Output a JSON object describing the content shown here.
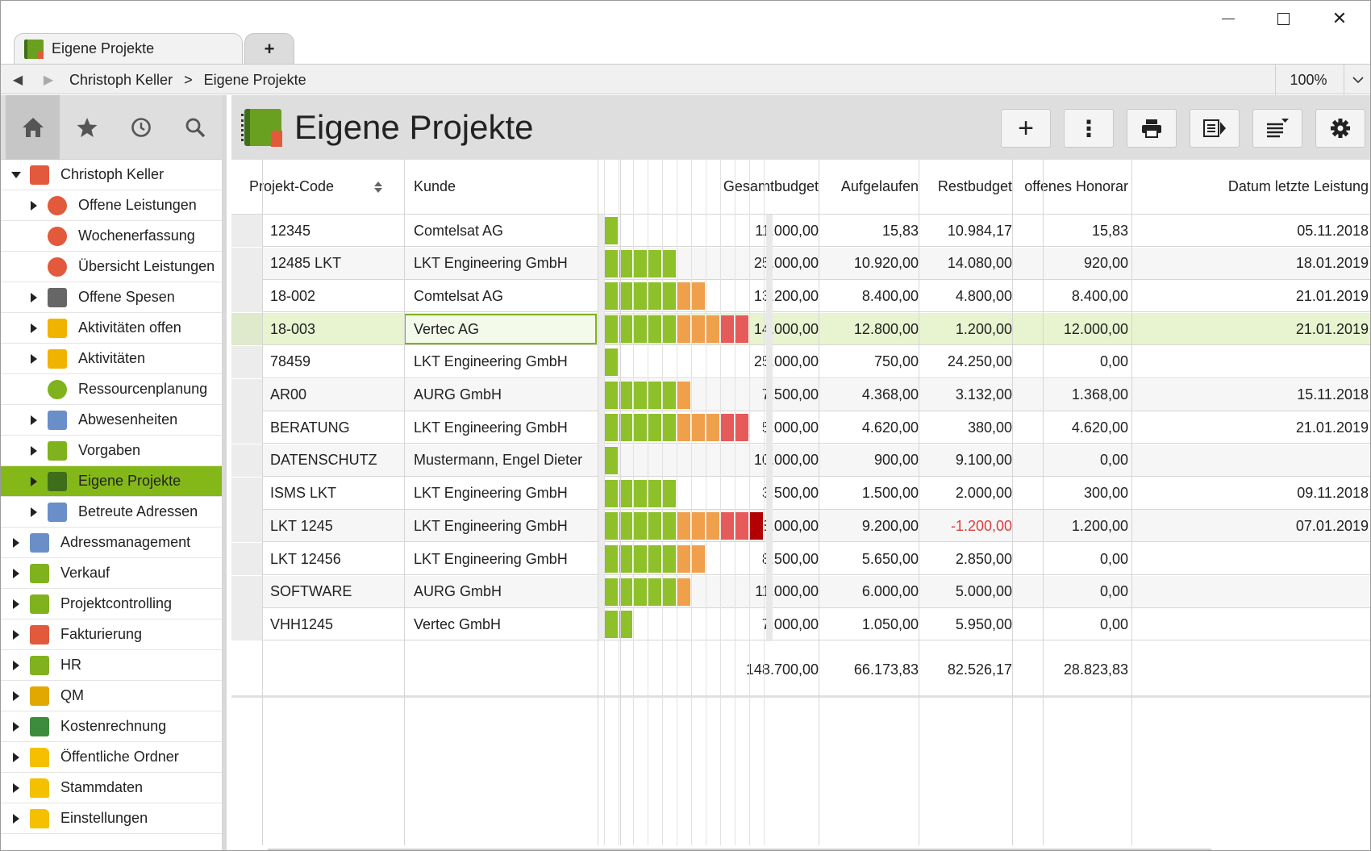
{
  "window": {
    "minimize": "—",
    "maximize": "☐",
    "close": "✕"
  },
  "tabs": [
    {
      "label": "Eigene Projekte"
    }
  ],
  "new_tab_label": "+",
  "address": {
    "back": "◀",
    "forward": "▶",
    "breadcrumb": [
      "Christoph Keller",
      ">",
      "Eigene Projekte"
    ],
    "zoom": "100%"
  },
  "sidebar": {
    "tools": [
      "home-icon",
      "star-icon",
      "history-icon",
      "search-icon"
    ],
    "items": [
      {
        "label": "Christoph Keller",
        "level": 0,
        "expanded": true,
        "icon": "user-icon",
        "color": "#e2593b"
      },
      {
        "label": "Offene Leistungen",
        "level": 1,
        "arrow": true,
        "icon": "chart-icon",
        "color": "#e2593b"
      },
      {
        "label": "Wochenerfassung",
        "level": 1,
        "arrow": false,
        "icon": "week-icon",
        "color": "#e2593b"
      },
      {
        "label": "Übersicht Leistungen",
        "level": 1,
        "arrow": false,
        "icon": "target-icon",
        "color": "#e2593b"
      },
      {
        "label": "Offene Spesen",
        "level": 1,
        "arrow": true,
        "icon": "receipt-icon",
        "color": "#666666"
      },
      {
        "label": "Aktivitäten offen",
        "level": 1,
        "arrow": true,
        "icon": "activity-icon",
        "color": "#f0b400"
      },
      {
        "label": "Aktivitäten",
        "level": 1,
        "arrow": true,
        "icon": "activity-icon",
        "color": "#f0b400"
      },
      {
        "label": "Ressourcenplanung",
        "level": 1,
        "arrow": false,
        "icon": "pie-icon",
        "color": "#7fb21d"
      },
      {
        "label": "Abwesenheiten",
        "level": 1,
        "arrow": true,
        "icon": "person-icon",
        "color": "#6a8fc8"
      },
      {
        "label": "Vorgaben",
        "level": 1,
        "arrow": true,
        "icon": "person-icon",
        "color": "#7fb21d"
      },
      {
        "label": "Eigene Projekte",
        "level": 1,
        "arrow": true,
        "icon": "notebook-icon",
        "color": "#3f6e1a",
        "selected": true
      },
      {
        "label": "Betreute Adressen",
        "level": 1,
        "arrow": true,
        "icon": "building-icon",
        "color": "#6a8fc8"
      },
      {
        "label": "Adressmanagement",
        "level": 0,
        "arrow": true,
        "icon": "address-icon",
        "color": "#6a8fc8"
      },
      {
        "label": "Verkauf",
        "level": 0,
        "arrow": true,
        "icon": "document-icon",
        "color": "#7fb21d"
      },
      {
        "label": "Projektcontrolling",
        "level": 0,
        "arrow": true,
        "icon": "notebook-icon",
        "color": "#7fb21d"
      },
      {
        "label": "Fakturierung",
        "level": 0,
        "arrow": true,
        "icon": "envelope-icon",
        "color": "#e2593b"
      },
      {
        "label": "HR",
        "level": 0,
        "arrow": true,
        "icon": "people-icon",
        "color": "#7fb21d"
      },
      {
        "label": "QM",
        "level": 0,
        "arrow": true,
        "icon": "certificate-icon",
        "color": "#e0a800"
      },
      {
        "label": "Kostenrechnung",
        "level": 0,
        "arrow": true,
        "icon": "money-icon",
        "color": "#3d8b3d"
      },
      {
        "label": "Öffentliche Ordner",
        "level": 0,
        "arrow": true,
        "icon": "folder-icon",
        "color": "#f5c000"
      },
      {
        "label": "Stammdaten",
        "level": 0,
        "arrow": true,
        "icon": "folder-icon",
        "color": "#f5c000"
      },
      {
        "label": "Einstellungen",
        "level": 0,
        "arrow": true,
        "icon": "settings-folder-icon",
        "color": "#f5c000"
      }
    ]
  },
  "main": {
    "title": "Eigene Projekte",
    "toolbar": [
      "add-icon",
      "more-icon",
      "print-icon",
      "export-icon",
      "columns-icon",
      "settings-icon"
    ],
    "toolbar_labels": {
      "add": "+",
      "more": "⋮"
    },
    "columns": {
      "code": "Projekt-Code",
      "kunde": "Kunde",
      "gesamt": "Gesamtbudget",
      "aufgelaufen": "Aufgelaufen",
      "rest": "Restbudget",
      "honorar": "offenes Honorar",
      "datum": "Datum letzte Leistung"
    },
    "bar_colors": {
      "green": "#8dc029",
      "orange": "#f0a04b",
      "red": "#e65a5a",
      "darkred": "#b30000"
    },
    "rows": [
      {
        "code": "12345",
        "kunde": "Comtelsat AG",
        "gesamt": "11.000,00",
        "aufgelaufen": "15,83",
        "rest": "10.984,17",
        "honorar": "15,83",
        "datum": "05.11.2018",
        "progress": 0.0014
      },
      {
        "code": "12485 LKT",
        "kunde": "LKT Engineering GmbH",
        "gesamt": "25.000,00",
        "aufgelaufen": "10.920,00",
        "rest": "14.080,00",
        "honorar": "920,00",
        "datum": "18.01.2019",
        "progress": 0.437
      },
      {
        "code": "18-002",
        "kunde": "Comtelsat AG",
        "gesamt": "13.200,00",
        "aufgelaufen": "8.400,00",
        "rest": "4.800,00",
        "honorar": "8.400,00",
        "datum": "21.01.2019",
        "progress": 0.636
      },
      {
        "code": "18-003",
        "kunde": "Vertec AG",
        "gesamt": "14.000,00",
        "aufgelaufen": "12.800,00",
        "rest": "1.200,00",
        "honorar": "12.000,00",
        "datum": "21.01.2019",
        "progress": 0.914,
        "selected": true
      },
      {
        "code": "78459",
        "kunde": "LKT Engineering GmbH",
        "gesamt": "25.000,00",
        "aufgelaufen": "750,00",
        "rest": "24.250,00",
        "honorar": "0,00",
        "datum": "",
        "progress": 0.03
      },
      {
        "code": "AR00",
        "kunde": "AURG GmbH",
        "gesamt": "7.500,00",
        "aufgelaufen": "4.368,00",
        "rest": "3.132,00",
        "honorar": "1.368,00",
        "datum": "15.11.2018",
        "progress": 0.582
      },
      {
        "code": "BERATUNG",
        "kunde": "LKT Engineering GmbH",
        "gesamt": "5.000,00",
        "aufgelaufen": "4.620,00",
        "rest": "380,00",
        "honorar": "4.620,00",
        "datum": "21.01.2019",
        "progress": 0.924
      },
      {
        "code": "DATENSCHUTZ",
        "kunde": "Mustermann, Engel Dieter",
        "gesamt": "10.000,00",
        "aufgelaufen": "900,00",
        "rest": "9.100,00",
        "honorar": "0,00",
        "datum": "",
        "progress": 0.09
      },
      {
        "code": "ISMS LKT",
        "kunde": "LKT Engineering GmbH",
        "gesamt": "3.500,00",
        "aufgelaufen": "1.500,00",
        "rest": "2.000,00",
        "honorar": "300,00",
        "datum": "09.11.2018",
        "progress": 0.429
      },
      {
        "code": "LKT 1245",
        "kunde": "LKT Engineering GmbH",
        "gesamt": "8.000,00",
        "aufgelaufen": "9.200,00",
        "rest": "-1.200,00",
        "honorar": "1.200,00",
        "datum": "07.01.2019",
        "progress": 1.15,
        "negative": true
      },
      {
        "code": "LKT 12456",
        "kunde": "LKT Engineering GmbH",
        "gesamt": "8.500,00",
        "aufgelaufen": "5.650,00",
        "rest": "2.850,00",
        "honorar": "0,00",
        "datum": "",
        "progress": 0.665
      },
      {
        "code": "SOFTWARE",
        "kunde": "AURG GmbH",
        "gesamt": "11.000,00",
        "aufgelaufen": "6.000,00",
        "rest": "5.000,00",
        "honorar": "0,00",
        "datum": "",
        "progress": 0.545
      },
      {
        "code": "VHH1245",
        "kunde": "Vertec GmbH",
        "gesamt": "7.000,00",
        "aufgelaufen": "1.050,00",
        "rest": "5.950,00",
        "honorar": "0,00",
        "datum": "",
        "progress": 0.15
      }
    ],
    "totals": {
      "gesamt": "148.700,00",
      "aufgelaufen": "66.173,83",
      "rest": "82.526,17",
      "honorar": "28.823,83"
    }
  }
}
